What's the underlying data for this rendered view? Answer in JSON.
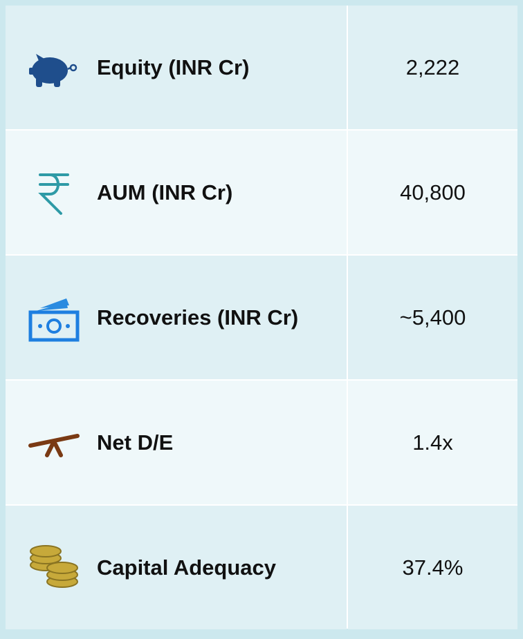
{
  "table": {
    "rows": [
      [
        "Equity (INR Cr)",
        "2,222"
      ],
      [
        "AUM (INR Cr)",
        "40,800"
      ],
      [
        "Recoveries (INR Cr)",
        "~5,400"
      ],
      [
        "Net D/E",
        "1.4x"
      ],
      [
        "Capital Adequacy",
        "37.4%"
      ]
    ]
  }
}
